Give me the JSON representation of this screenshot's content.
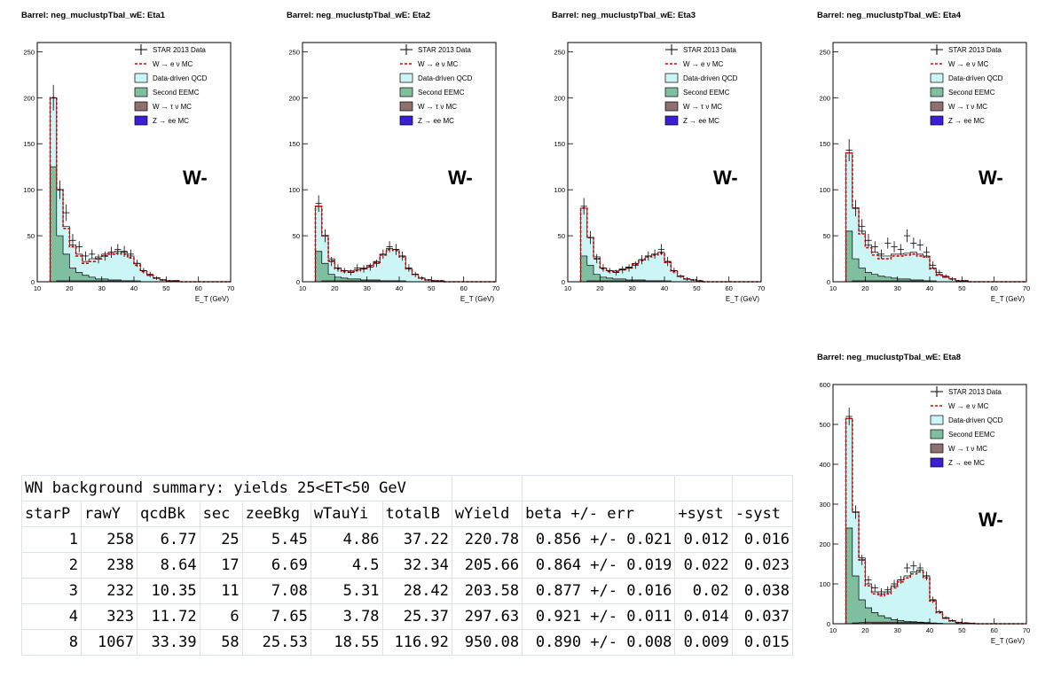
{
  "chart_data": [
    {
      "type": "histogram",
      "title": "Barrel: neg_muclustpTbal_wE: Eta1",
      "xlabel": "E_T (GeV)",
      "xlim": [
        10,
        70
      ],
      "ylim": [
        0,
        260
      ],
      "yticks": [
        0,
        50,
        100,
        150,
        200,
        250
      ],
      "xticks": [
        10,
        20,
        30,
        40,
        50,
        60,
        70
      ],
      "label": "W-",
      "legend": [
        "STAR 2013 Data",
        "W → e ν MC",
        "Data-driven QCD",
        "Second EEMC",
        "W → τ ν MC",
        "Z → ee MC"
      ],
      "bin_edges": [
        14,
        16,
        18,
        20,
        22,
        24,
        26,
        28,
        30,
        32,
        34,
        36,
        38,
        40,
        42,
        44,
        46,
        48,
        50,
        52,
        54,
        56,
        58,
        60,
        62,
        64,
        66,
        68,
        70
      ],
      "data": [
        200,
        100,
        75,
        45,
        38,
        28,
        30,
        25,
        28,
        32,
        35,
        33,
        30,
        20,
        12,
        8,
        4,
        2,
        1,
        1,
        0,
        0,
        0,
        0,
        0,
        0,
        0,
        0
      ],
      "data_err": [
        14,
        10,
        9,
        7,
        6,
        5,
        5,
        5,
        5,
        6,
        6,
        6,
        5,
        4,
        3,
        3,
        2,
        1,
        1,
        1,
        0,
        0,
        0,
        0,
        0,
        0,
        0,
        0
      ],
      "stack_total": [
        200,
        100,
        60,
        40,
        30,
        22,
        25,
        27,
        30,
        32,
        33,
        32,
        28,
        20,
        12,
        7,
        4,
        2,
        1,
        1,
        0,
        0,
        0,
        0,
        0,
        0,
        0,
        0
      ],
      "second_eemc": [
        125,
        50,
        30,
        15,
        10,
        7,
        5,
        3,
        3,
        2,
        2,
        1,
        1,
        1,
        0,
        0,
        0,
        0,
        0,
        0,
        0,
        0,
        0,
        0,
        0,
        0,
        0,
        0
      ],
      "wtau": [
        0,
        1,
        1,
        1,
        1,
        1,
        1,
        1,
        1,
        1,
        1,
        1,
        1,
        0,
        0,
        0,
        0,
        0,
        0,
        0,
        0,
        0,
        0,
        0,
        0,
        0,
        0,
        0
      ],
      "zee": [
        0,
        0,
        0,
        0,
        0,
        0,
        0,
        0,
        0,
        0,
        0,
        0,
        0,
        0,
        0,
        0,
        0,
        0,
        0,
        0,
        0,
        0,
        0,
        0,
        0,
        0,
        0,
        0
      ],
      "w_mc": [
        200,
        100,
        58,
        38,
        28,
        20,
        22,
        25,
        28,
        30,
        31,
        30,
        26,
        18,
        11,
        7,
        4,
        2,
        1,
        1,
        0,
        0,
        0,
        0,
        0,
        0,
        0,
        0
      ]
    },
    {
      "type": "histogram",
      "title": "Barrel: neg_muclustpTbal_wE: Eta2",
      "xlabel": "E_T (GeV)",
      "xlim": [
        10,
        70
      ],
      "ylim": [
        0,
        260
      ],
      "yticks": [
        0,
        50,
        100,
        150,
        200,
        250
      ],
      "xticks": [
        10,
        20,
        30,
        40,
        50,
        60,
        70
      ],
      "label": "W-",
      "legend": [
        "STAR 2013 Data",
        "W → e ν MC",
        "Data-driven QCD",
        "Second EEMC",
        "W → τ ν MC",
        "Z → ee MC"
      ],
      "bin_edges": [
        14,
        16,
        18,
        20,
        22,
        24,
        26,
        28,
        30,
        32,
        34,
        36,
        38,
        40,
        42,
        44,
        46,
        48,
        50,
        52,
        54,
        56,
        58,
        60,
        62,
        64,
        66,
        68,
        70
      ],
      "data": [
        85,
        50,
        22,
        15,
        12,
        10,
        15,
        14,
        16,
        20,
        30,
        38,
        35,
        28,
        15,
        8,
        4,
        2,
        1,
        1,
        0,
        0,
        0,
        0,
        0,
        0,
        0,
        0
      ],
      "data_err": [
        9,
        7,
        5,
        4,
        3,
        3,
        4,
        4,
        4,
        4,
        5,
        6,
        6,
        5,
        4,
        3,
        2,
        1,
        1,
        1,
        0,
        0,
        0,
        0,
        0,
        0,
        0,
        0
      ],
      "stack_total": [
        82,
        50,
        25,
        15,
        12,
        12,
        13,
        15,
        18,
        22,
        30,
        36,
        35,
        28,
        14,
        8,
        4,
        2,
        1,
        1,
        0,
        0,
        0,
        0,
        0,
        0,
        0,
        0
      ],
      "second_eemc": [
        33,
        20,
        8,
        5,
        4,
        3,
        3,
        2,
        2,
        2,
        1,
        1,
        1,
        1,
        0,
        0,
        0,
        0,
        0,
        0,
        0,
        0,
        0,
        0,
        0,
        0,
        0,
        0
      ],
      "wtau": [
        0,
        1,
        1,
        1,
        1,
        1,
        1,
        1,
        1,
        1,
        1,
        1,
        1,
        0,
        0,
        0,
        0,
        0,
        0,
        0,
        0,
        0,
        0,
        0,
        0,
        0,
        0,
        0
      ],
      "zee": [
        0,
        0,
        0,
        0,
        0,
        0,
        0,
        0,
        0,
        0,
        0,
        0,
        0,
        0,
        0,
        0,
        0,
        0,
        0,
        0,
        0,
        0,
        0,
        0,
        0,
        0,
        0,
        0
      ],
      "w_mc": [
        82,
        50,
        23,
        14,
        11,
        11,
        12,
        14,
        17,
        21,
        29,
        35,
        34,
        27,
        14,
        8,
        4,
        2,
        1,
        1,
        0,
        0,
        0,
        0,
        0,
        0,
        0,
        0
      ]
    },
    {
      "type": "histogram",
      "title": "Barrel: neg_muclustpTbal_wE: Eta3",
      "xlabel": "E_T (GeV)",
      "xlim": [
        10,
        70
      ],
      "ylim": [
        0,
        260
      ],
      "yticks": [
        0,
        50,
        100,
        150,
        200,
        250
      ],
      "xticks": [
        10,
        20,
        30,
        40,
        50,
        60,
        70
      ],
      "label": "W-",
      "legend": [
        "STAR 2013 Data",
        "W → e ν MC",
        "Data-driven QCD",
        "Second EEMC",
        "W → τ ν MC",
        "Z → ee MC"
      ],
      "bin_edges": [
        14,
        16,
        18,
        20,
        22,
        24,
        26,
        28,
        30,
        32,
        34,
        36,
        38,
        40,
        42,
        44,
        46,
        48,
        50,
        52,
        54,
        56,
        58,
        60,
        62,
        64,
        66,
        68,
        70
      ],
      "data": [
        82,
        48,
        25,
        15,
        12,
        10,
        13,
        15,
        18,
        24,
        28,
        30,
        35,
        22,
        12,
        6,
        3,
        2,
        1,
        0,
        0,
        0,
        0,
        0,
        0,
        0,
        0,
        0
      ],
      "data_err": [
        9,
        7,
        5,
        4,
        3,
        3,
        4,
        4,
        4,
        5,
        5,
        5,
        6,
        5,
        3,
        2,
        2,
        1,
        1,
        0,
        0,
        0,
        0,
        0,
        0,
        0,
        0,
        0
      ],
      "stack_total": [
        80,
        48,
        27,
        15,
        12,
        12,
        14,
        16,
        20,
        24,
        28,
        30,
        32,
        22,
        12,
        6,
        3,
        2,
        1,
        0,
        0,
        0,
        0,
        0,
        0,
        0,
        0,
        0
      ],
      "second_eemc": [
        28,
        18,
        8,
        5,
        4,
        3,
        3,
        2,
        2,
        2,
        1,
        1,
        1,
        1,
        0,
        0,
        0,
        0,
        0,
        0,
        0,
        0,
        0,
        0,
        0,
        0,
        0,
        0
      ],
      "wtau": [
        0,
        1,
        1,
        1,
        1,
        1,
        1,
        1,
        1,
        1,
        1,
        1,
        1,
        0,
        0,
        0,
        0,
        0,
        0,
        0,
        0,
        0,
        0,
        0,
        0,
        0,
        0,
        0
      ],
      "zee": [
        0,
        0,
        0,
        0,
        0,
        0,
        0,
        0,
        0,
        0,
        0,
        0,
        0,
        0,
        0,
        0,
        0,
        0,
        0,
        0,
        0,
        0,
        0,
        0,
        0,
        0,
        0,
        0
      ],
      "w_mc": [
        80,
        48,
        25,
        14,
        11,
        11,
        13,
        15,
        19,
        23,
        27,
        29,
        31,
        21,
        11,
        6,
        3,
        2,
        1,
        0,
        0,
        0,
        0,
        0,
        0,
        0,
        0,
        0
      ]
    },
    {
      "type": "histogram",
      "title": "Barrel: neg_muclustpTbal_wE: Eta4",
      "xlabel": "E_T (GeV)",
      "xlim": [
        10,
        70
      ],
      "ylim": [
        0,
        260
      ],
      "yticks": [
        0,
        50,
        100,
        150,
        200,
        250
      ],
      "xticks": [
        10,
        20,
        30,
        40,
        50,
        60,
        70
      ],
      "label": "W-",
      "legend": [
        "STAR 2013 Data",
        "W → e ν MC",
        "Data-driven QCD",
        "Second EEMC",
        "W → τ ν MC",
        "Z → ee MC"
      ],
      "bin_edges": [
        14,
        16,
        18,
        20,
        22,
        24,
        26,
        28,
        30,
        32,
        34,
        36,
        38,
        40,
        42,
        44,
        46,
        48,
        50,
        52,
        54,
        56,
        58,
        60,
        62,
        64,
        66,
        68,
        70
      ],
      "data": [
        143,
        80,
        60,
        45,
        38,
        30,
        42,
        38,
        35,
        50,
        42,
        40,
        32,
        18,
        10,
        6,
        3,
        1,
        1,
        0,
        0,
        0,
        0,
        0,
        0,
        0,
        0,
        0
      ],
      "data_err": [
        12,
        9,
        8,
        7,
        6,
        5,
        6,
        6,
        6,
        7,
        6,
        6,
        6,
        4,
        3,
        2,
        2,
        1,
        1,
        0,
        0,
        0,
        0,
        0,
        0,
        0,
        0,
        0
      ],
      "stack_total": [
        140,
        80,
        55,
        40,
        32,
        28,
        28,
        30,
        30,
        31,
        32,
        30,
        28,
        15,
        8,
        5,
        3,
        1,
        1,
        0,
        0,
        0,
        0,
        0,
        0,
        0,
        0,
        0
      ],
      "second_eemc": [
        55,
        25,
        15,
        10,
        8,
        6,
        5,
        4,
        3,
        3,
        2,
        2,
        1,
        1,
        0,
        0,
        0,
        0,
        0,
        0,
        0,
        0,
        0,
        0,
        0,
        0,
        0,
        0
      ],
      "wtau": [
        0,
        1,
        1,
        1,
        1,
        1,
        1,
        1,
        1,
        1,
        1,
        1,
        1,
        0,
        0,
        0,
        0,
        0,
        0,
        0,
        0,
        0,
        0,
        0,
        0,
        0,
        0,
        0
      ],
      "zee": [
        0,
        0,
        0,
        0,
        0,
        0,
        0,
        0,
        0,
        0,
        0,
        0,
        0,
        0,
        0,
        0,
        0,
        0,
        0,
        0,
        0,
        0,
        0,
        0,
        0,
        0,
        0,
        0
      ],
      "w_mc": [
        140,
        80,
        52,
        37,
        29,
        25,
        25,
        28,
        28,
        29,
        30,
        28,
        27,
        14,
        7,
        5,
        3,
        1,
        1,
        0,
        0,
        0,
        0,
        0,
        0,
        0,
        0,
        0
      ]
    },
    {
      "type": "histogram",
      "title": "Barrel: neg_muclustpTbal_wE: Eta8",
      "xlabel": "E_T (GeV)",
      "xlim": [
        10,
        70
      ],
      "ylim": [
        0,
        600
      ],
      "yticks": [
        0,
        100,
        200,
        300,
        400,
        500,
        600
      ],
      "xticks": [
        10,
        20,
        30,
        40,
        50,
        60,
        70
      ],
      "label": "W-",
      "legend": [
        "STAR 2013 Data",
        "W → e ν MC",
        "Data-driven QCD",
        "Second EEMC",
        "W → τ ν MC",
        "Z → ee MC"
      ],
      "bin_edges": [
        14,
        16,
        18,
        20,
        22,
        24,
        26,
        28,
        30,
        32,
        34,
        36,
        38,
        40,
        42,
        44,
        46,
        48,
        50,
        52,
        54,
        56,
        58,
        60,
        62,
        64,
        66,
        68,
        70
      ],
      "data": [
        520,
        280,
        160,
        110,
        90,
        80,
        85,
        100,
        110,
        140,
        145,
        140,
        120,
        60,
        30,
        15,
        8,
        3,
        2,
        1,
        0,
        0,
        0,
        0,
        0,
        0,
        0,
        0
      ],
      "data_err": [
        22,
        17,
        13,
        10,
        9,
        9,
        9,
        10,
        10,
        12,
        12,
        12,
        11,
        8,
        5,
        4,
        3,
        2,
        1,
        1,
        0,
        0,
        0,
        0,
        0,
        0,
        0,
        0
      ],
      "stack_total": [
        515,
        280,
        165,
        100,
        80,
        75,
        80,
        95,
        110,
        120,
        130,
        135,
        120,
        60,
        30,
        15,
        8,
        3,
        2,
        1,
        0,
        0,
        0,
        0,
        0,
        0,
        0,
        0
      ],
      "second_eemc": [
        240,
        120,
        60,
        40,
        28,
        20,
        15,
        10,
        8,
        6,
        5,
        4,
        3,
        2,
        1,
        0,
        0,
        0,
        0,
        0,
        0,
        0,
        0,
        0,
        0,
        0,
        0,
        0
      ],
      "wtau": [
        0,
        2,
        3,
        4,
        4,
        4,
        4,
        4,
        3,
        3,
        3,
        3,
        2,
        1,
        1,
        0,
        0,
        0,
        0,
        0,
        0,
        0,
        0,
        0,
        0,
        0,
        0,
        0
      ],
      "zee": [
        0,
        0,
        0,
        0,
        1,
        1,
        1,
        1,
        1,
        1,
        1,
        1,
        1,
        1,
        0,
        0,
        0,
        0,
        0,
        0,
        0,
        0,
        0,
        0,
        0,
        0,
        0,
        0
      ],
      "w_mc": [
        515,
        280,
        160,
        95,
        75,
        70,
        75,
        90,
        105,
        115,
        125,
        130,
        115,
        57,
        28,
        14,
        7,
        3,
        2,
        1,
        0,
        0,
        0,
        0,
        0,
        0,
        0,
        0
      ]
    }
  ],
  "summary_table": {
    "title": "WN background summary: yields 25<ET<50 GeV",
    "headers": [
      "starP",
      "rawY",
      "qcdBk",
      "sec",
      "zeeBkg",
      "wTauYi",
      "totalB",
      "wYield",
      "beta +/- err",
      "+syst",
      "-syst"
    ],
    "rows": [
      [
        "1",
        "258",
        "6.77",
        "25",
        "5.45",
        "4.86",
        "37.22",
        "220.78",
        "0.856 +/- 0.021",
        "0.012",
        "0.016"
      ],
      [
        "2",
        "238",
        "8.64",
        "17",
        "6.69",
        "4.5",
        "32.34",
        "205.66",
        "0.864 +/- 0.019",
        "0.022",
        "0.023"
      ],
      [
        "3",
        "232",
        "10.35",
        "11",
        "7.08",
        "5.31",
        "28.42",
        "203.58",
        "0.877 +/- 0.016",
        "0.02",
        "0.038"
      ],
      [
        "4",
        "323",
        "11.72",
        "6",
        "7.65",
        "3.78",
        "25.37",
        "297.63",
        "0.921 +/- 0.011",
        "0.014",
        "0.037"
      ],
      [
        "8",
        "1067",
        "33.39",
        "58",
        "25.53",
        "18.55",
        "116.92",
        "950.08",
        "0.890 +/- 0.008",
        "0.009",
        "0.015"
      ]
    ]
  },
  "colors": {
    "qcd_fill": "#ccf6f6",
    "eemc_fill": "#7fbf9f",
    "wtau_fill": "#8f6f6f",
    "zee_fill": "#3a1fd6",
    "wmc_line": "#e00000",
    "data_marker": "#000000"
  }
}
